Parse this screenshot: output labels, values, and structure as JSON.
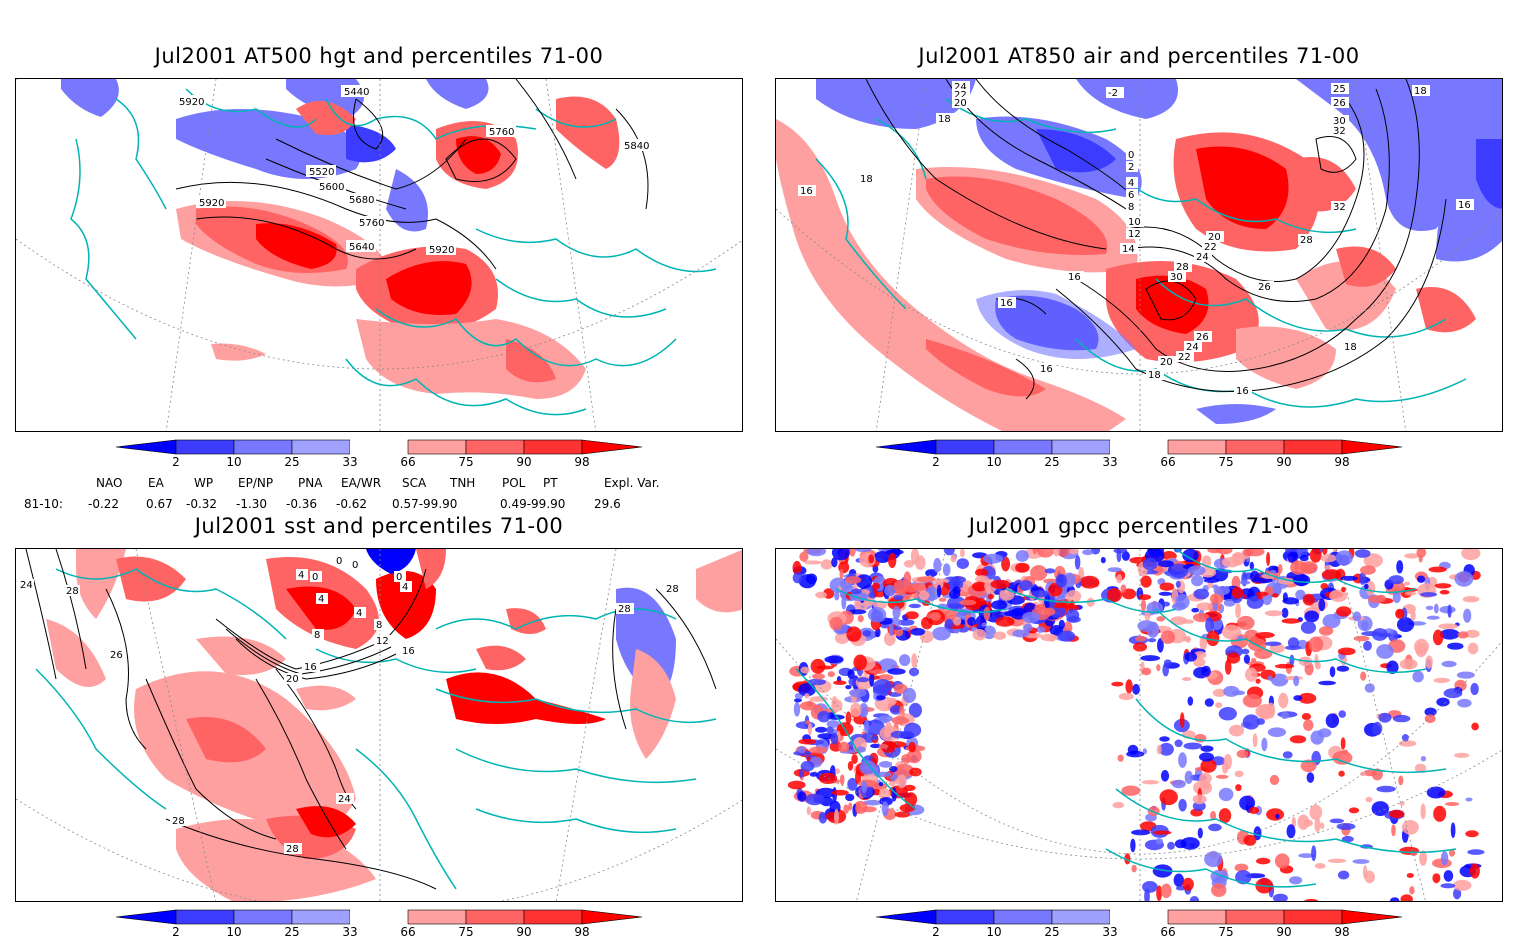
{
  "panels": [
    {
      "title": "Jul2001 AT500 hgt and percentiles 71-00",
      "contour_labels": [
        "5920",
        "5440",
        "5760",
        "5840",
        "5520",
        "5600",
        "5680",
        "5760",
        "5920",
        "5640",
        "5920"
      ]
    },
    {
      "title": "Jul2001 AT850 air and percentiles 71-00",
      "contour_labels": [
        "24",
        "22",
        "20",
        "18",
        "-2",
        "25",
        "26",
        "30",
        "32",
        "18",
        "0",
        "2",
        "4",
        "6",
        "8",
        "10",
        "12",
        "14",
        "16",
        "18",
        "16",
        "16",
        "20",
        "22",
        "24",
        "28",
        "30",
        "26",
        "28",
        "32",
        "16",
        "26",
        "24",
        "22",
        "20",
        "18",
        "16",
        "16",
        "18"
      ]
    },
    {
      "title": "Jul2001 sst and percentiles 71-00",
      "contour_labels": [
        "24",
        "28",
        "26",
        "0",
        "0",
        "4",
        "0",
        "4",
        "0",
        "4",
        "8",
        "8",
        "12",
        "4",
        "16",
        "16",
        "20",
        "24",
        "28",
        "28",
        "28",
        "28"
      ]
    },
    {
      "title": "Jul2001 gpcc percentiles 71-00",
      "contour_labels": []
    }
  ],
  "colorbar": {
    "ticks": [
      "2",
      "10",
      "25",
      "33",
      "66",
      "75",
      "90",
      "98"
    ],
    "colors": [
      "#0000ff",
      "#3c3cff",
      "#7878ff",
      "#a0a0ff",
      "#ffffff",
      "#ffa0a0",
      "#ff6464",
      "#ff3232",
      "#ff0000"
    ]
  },
  "indices": {
    "headers": [
      "NAO",
      "EA",
      "WP",
      "EP/NP",
      "PNA",
      "EA/WR",
      "SCA",
      "TNH",
      "POL",
      "PT",
      "Expl. Var."
    ],
    "row_label": "81-10:",
    "values": [
      "-0.22",
      "0.67",
      "-0.32",
      "-1.30",
      "-0.36",
      "-0.62",
      "0.57-99.90",
      "0.49-99.90",
      "29.6"
    ]
  },
  "colors": {
    "coast": "#00b4b4",
    "contour": "#000000",
    "grid": "#888888"
  }
}
